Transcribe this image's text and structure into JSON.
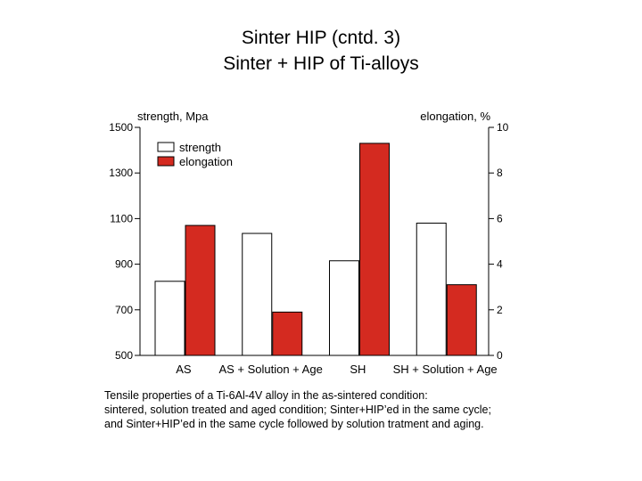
{
  "slide": {
    "title_line1": "Sinter HIP (cntd. 3)",
    "title_line2": "Sinter + HIP of Ti-alloys"
  },
  "caption": [
    "Tensile properties of a Ti-6Al-4V alloy in the as-sintered condition:",
    "sintered, solution treated and aged condition; Sinter+HIP’ed in the same cycle;",
    "and Sinter+HIP’ed in the same cycle followed by solution tratment and aging."
  ],
  "chart_data": {
    "type": "bar",
    "categories": [
      "AS",
      "AS + Solution + Age",
      "SH",
      "SH + Solution + Age"
    ],
    "series": [
      {
        "name": "strength",
        "axis": "left",
        "color": "#ffffff",
        "values": [
          825,
          1035,
          915,
          1080
        ]
      },
      {
        "name": "elongation",
        "axis": "right",
        "color": "#d42a20",
        "values": [
          5.7,
          1.9,
          9.3,
          3.1
        ]
      }
    ],
    "ylabel_left": "strength, Mpa",
    "ylabel_right": "elongation, %",
    "ylim_left": [
      500,
      1500
    ],
    "ylim_right": [
      0,
      10
    ],
    "yticks_left": [
      500,
      700,
      900,
      1100,
      1300,
      1500
    ],
    "yticks_right": [
      0,
      2,
      4,
      6,
      8,
      10
    ],
    "legend_position": "top-left",
    "grid": false
  }
}
